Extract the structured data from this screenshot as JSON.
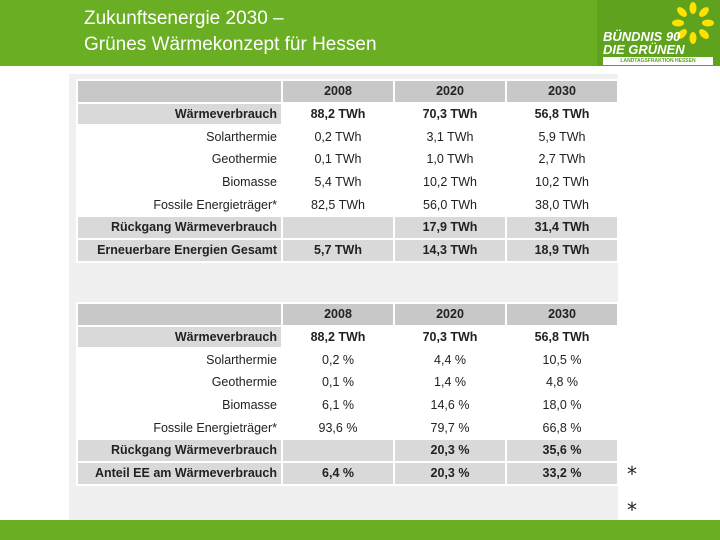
{
  "header": {
    "title_line1": "Zukunftsenergie 2030 –",
    "title_line2": "Grünes Wärmekonzept für Hessen"
  },
  "logo": {
    "line1": "BÜNDNIS 90",
    "line2": "DIE GRÜNEN",
    "tagline": "LANDTAGSFRAKTION HESSEN"
  },
  "table1": {
    "headers": [
      "",
      "2008",
      "2020",
      "2030"
    ],
    "rows": [
      {
        "label": "Wärmeverbrauch",
        "v2008": "88,2 TWh",
        "v2020": "70,3 TWh",
        "v2030": "56,8 TWh"
      },
      {
        "label": "Solarthermie",
        "v2008": "0,2 TWh",
        "v2020": "3,1 TWh",
        "v2030": "5,9 TWh"
      },
      {
        "label": "Geothermie",
        "v2008": "0,1 TWh",
        "v2020": "1,0 TWh",
        "v2030": "2,7 TWh"
      },
      {
        "label": "Biomasse",
        "v2008": "5,4 TWh",
        "v2020": "10,2 TWh",
        "v2030": "10,2 TWh"
      },
      {
        "label": "Fossile Energieträger*",
        "v2008": "82,5 TWh",
        "v2020": "56,0 TWh",
        "v2030": "38,0 TWh"
      },
      {
        "label": "Rückgang Wärmeverbrauch",
        "v2008": "",
        "v2020": "17,9 TWh",
        "v2030": "31,4 TWh"
      },
      {
        "label": "Erneuerbare Energien Gesamt",
        "v2008": "5,7 TWh",
        "v2020": "14,3 TWh",
        "v2030": "18,9 TWh"
      }
    ]
  },
  "table2": {
    "headers": [
      "",
      "2008",
      "2020",
      "2030"
    ],
    "rows": [
      {
        "label": "Wärmeverbrauch",
        "v2008": "88,2 TWh",
        "v2020": "70,3 TWh",
        "v2030": "56,8 TWh"
      },
      {
        "label": "Solarthermie",
        "v2008": "0,2 %",
        "v2020": "4,4 %",
        "v2030": "10,5 %"
      },
      {
        "label": "Geothermie",
        "v2008": "0,1 %",
        "v2020": "1,4 %",
        "v2030": "4,8 %"
      },
      {
        "label": "Biomasse",
        "v2008": "6,1 %",
        "v2020": "14,6 %",
        "v2030": "18,0 %"
      },
      {
        "label": "Fossile Energieträger*",
        "v2008": "93,6 %",
        "v2020": "79,7 %",
        "v2030": "66,8 %"
      },
      {
        "label": "Rückgang Wärmeverbrauch",
        "v2008": "",
        "v2020": "20,3 %",
        "v2030": "35,6 %"
      },
      {
        "label": "Anteil EE am Wärmeverbrauch",
        "v2008": "6,4 %",
        "v2020": "20,3 %",
        "v2030": "33,2 %"
      }
    ]
  },
  "footnote_markers": [
    "*",
    "*"
  ],
  "colors": {
    "header_green": "#6aaf23",
    "logo_green": "#5ea21d",
    "sun_yellow": "#ffe100",
    "table_header_gray": "#c8c8c8",
    "table_row_gray": "#d9d9d9"
  }
}
